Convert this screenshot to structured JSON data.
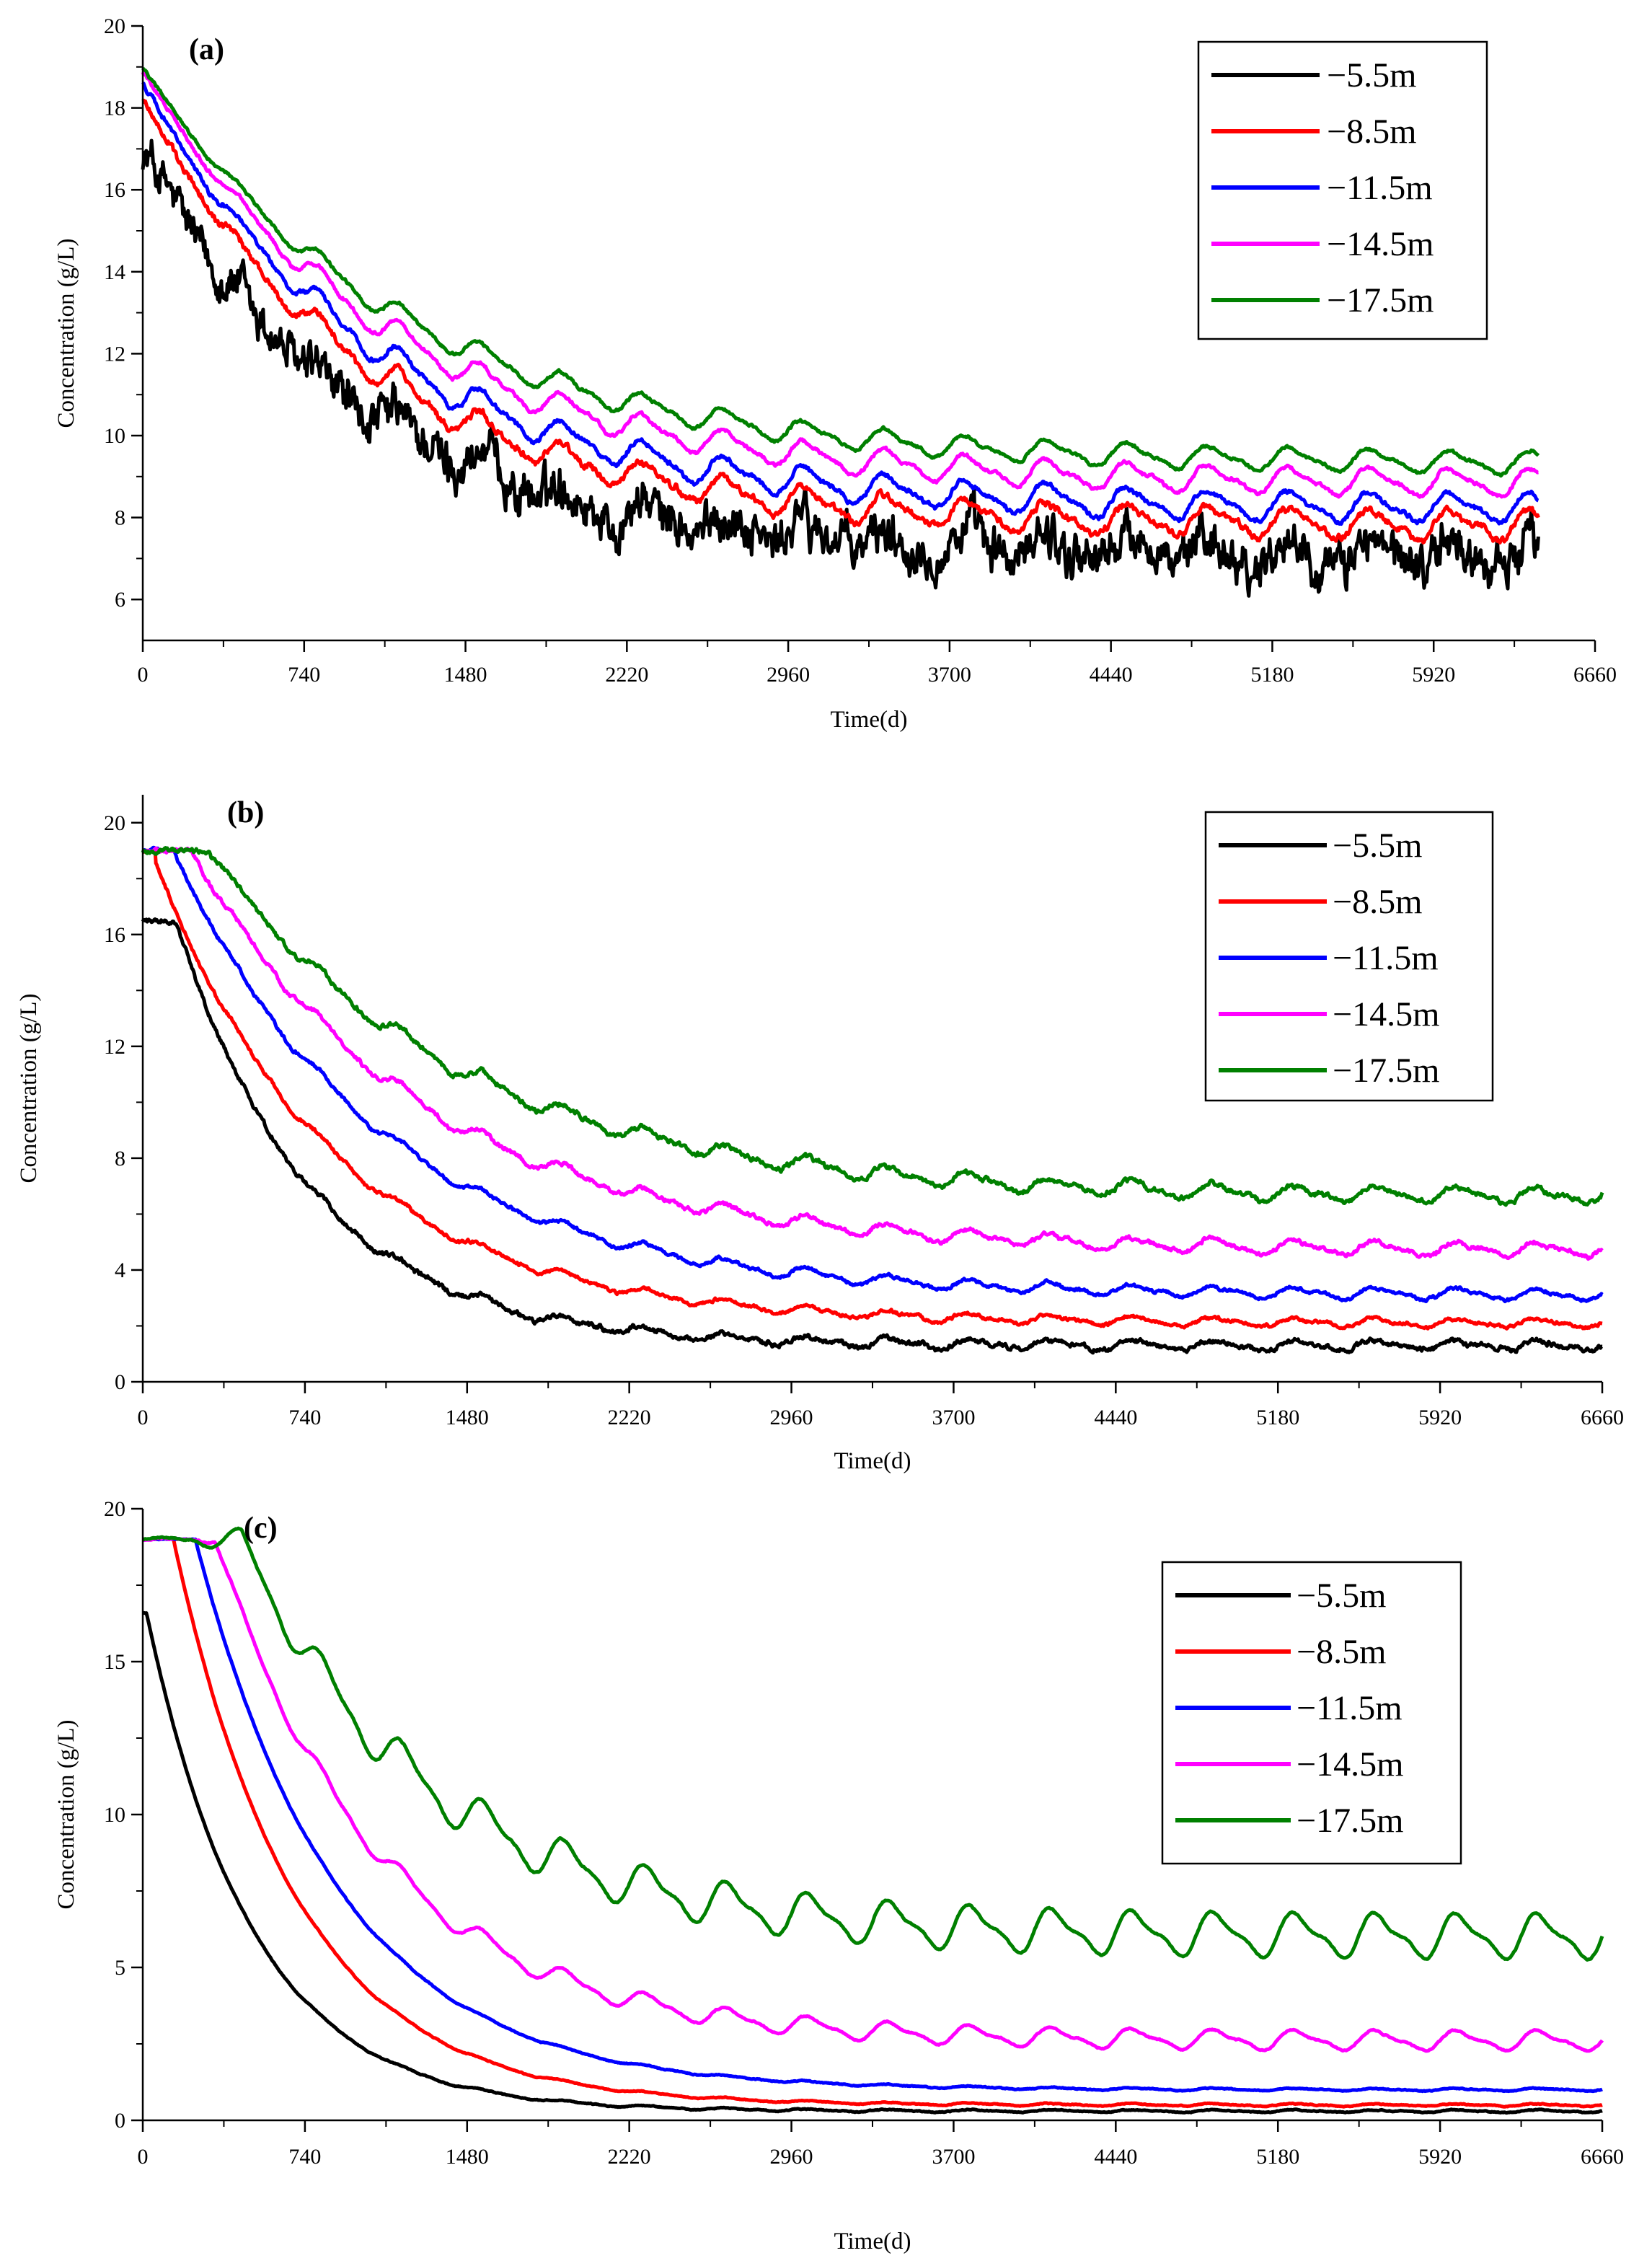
{
  "series_colors": [
    "#000000",
    "#ff0000",
    "#0000ff",
    "#ff00ff",
    "#008000"
  ],
  "chart_data": [
    {
      "type": "line",
      "panel_label": "(a)",
      "xlabel": "Time(d)",
      "ylabel": "Concentration (g/L)",
      "xlim": [
        0,
        6660
      ],
      "ylim": [
        5,
        20
      ],
      "xticks": [
        0,
        740,
        1480,
        2220,
        2960,
        3700,
        4440,
        5180,
        5920,
        6660
      ],
      "yticks": [
        6,
        8,
        10,
        12,
        14,
        16,
        18,
        20
      ],
      "x_end": 6400,
      "legend": "top-right",
      "series": [
        {
          "name": "−5.5m",
          "start": 17.0,
          "end": 7.1,
          "tau": 1000,
          "amp": 0.45,
          "noise": 0.75,
          "peak": 17.9
        },
        {
          "name": "−8.5m",
          "start": 18.2,
          "end": 7.8,
          "tau": 1050,
          "amp": 0.45,
          "noise": 0.12,
          "peak": 18.2
        },
        {
          "name": "−11.5m",
          "start": 18.6,
          "end": 8.2,
          "tau": 1100,
          "amp": 0.45,
          "noise": 0.08,
          "peak": 18.6
        },
        {
          "name": "−14.5m",
          "start": 18.9,
          "end": 8.8,
          "tau": 1150,
          "amp": 0.42,
          "noise": 0.06,
          "peak": 18.9
        },
        {
          "name": "−17.5m",
          "start": 19.0,
          "end": 9.3,
          "tau": 1200,
          "amp": 0.35,
          "noise": 0.05,
          "peak": 19.0
        }
      ]
    },
    {
      "type": "line",
      "panel_label": "(b)",
      "xlabel": "Time(d)",
      "ylabel": "Concentration (g/L)",
      "xlim": [
        0,
        6660
      ],
      "ylim": [
        0,
        21
      ],
      "xticks": [
        0,
        740,
        1480,
        2220,
        2960,
        3700,
        4440,
        5180,
        5920,
        6660
      ],
      "yticks": [
        0,
        4,
        8,
        12,
        16,
        20
      ],
      "x_end": 6660,
      "legend": "top-right",
      "series": [
        {
          "name": "−5.5m",
          "start": 16.5,
          "end": 1.3,
          "tau": 620,
          "amp": 0.2,
          "noise": 0.12,
          "hold": 150,
          "peak": 16.5
        },
        {
          "name": "−8.5m",
          "start": 18.5,
          "end": 2.1,
          "tau": 820,
          "amp": 0.2,
          "noise": 0.08,
          "hold": 60,
          "peak": 19.0
        },
        {
          "name": "−11.5m",
          "start": 19.0,
          "end": 3.1,
          "tau": 950,
          "amp": 0.25,
          "noise": 0.08,
          "hold": 140,
          "peak": 19.0
        },
        {
          "name": "−14.5m",
          "start": 19.0,
          "end": 4.7,
          "tau": 1050,
          "amp": 0.3,
          "noise": 0.1,
          "hold": 220,
          "peak": 19.0
        },
        {
          "name": "−17.5m",
          "start": 19.0,
          "end": 6.6,
          "tau": 1150,
          "amp": 0.35,
          "noise": 0.12,
          "hold": 300,
          "peak": 19.0
        }
      ]
    },
    {
      "type": "line",
      "panel_label": "(c)",
      "xlabel": "Time(d)",
      "ylabel": "Concentration (g/L)",
      "xlim": [
        0,
        6660
      ],
      "ylim": [
        0,
        20
      ],
      "xticks": [
        0,
        740,
        1480,
        2220,
        2960,
        3700,
        4440,
        5180,
        5920,
        6660
      ],
      "yticks": [
        0,
        5,
        10,
        15,
        20
      ],
      "x_end": 6660,
      "legend": "top-right",
      "series": [
        {
          "name": "−5.5m",
          "start": 16.5,
          "end": 0.3,
          "tau": 480,
          "amp": 0.05,
          "noise": 0.02,
          "hold": 20,
          "peak": 16.6
        },
        {
          "name": "−8.5m",
          "start": 19.0,
          "end": 0.5,
          "tau": 560,
          "amp": 0.05,
          "noise": 0.02,
          "hold": 140,
          "peak": 19.0
        },
        {
          "name": "−11.5m",
          "start": 19.0,
          "end": 1.0,
          "tau": 650,
          "amp": 0.05,
          "noise": 0.02,
          "hold": 240,
          "peak": 19.0
        },
        {
          "name": "−14.5m",
          "start": 19.0,
          "end": 2.6,
          "tau": 760,
          "amp": 0.4,
          "noise": 0.03,
          "hold": 330,
          "peak": 19.0
        },
        {
          "name": "−17.5m",
          "start": 19.0,
          "end": 6.0,
          "tau": 880,
          "amp": 0.9,
          "noise": 0.03,
          "hold": 450,
          "peak": 19.0
        }
      ]
    }
  ]
}
